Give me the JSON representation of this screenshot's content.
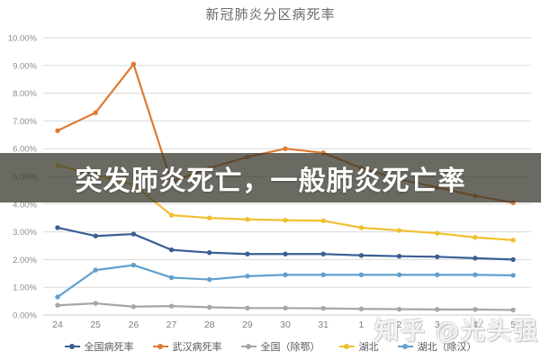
{
  "title": "新冠肺炎分区病死率",
  "overlay_banner": {
    "text": "突发肺炎死亡，一般肺炎死亡率"
  },
  "watermark": {
    "site": "知乎",
    "author": "@光头强"
  },
  "chart_data": {
    "type": "line",
    "title": "新冠肺炎分区病死率",
    "categories": [
      "24",
      "25",
      "26",
      "27",
      "28",
      "29",
      "30",
      "31",
      "1",
      "2",
      "3",
      "4",
      "5"
    ],
    "ylim": [
      0,
      10
    ],
    "ytick_labels": [
      "0.00%",
      "1.00%",
      "2.00%",
      "3.00%",
      "4.00%",
      "5.00%",
      "6.00%",
      "7.00%",
      "8.00%",
      "9.00%",
      "10.00%"
    ],
    "grid": true,
    "legend_position": "bottom",
    "marker": "circle",
    "series": [
      {
        "name": "全国病死率",
        "color": "#3A5F94",
        "values": [
          3.15,
          2.85,
          2.92,
          2.35,
          2.25,
          2.2,
          2.2,
          2.2,
          2.15,
          2.12,
          2.1,
          2.05,
          2.0
        ]
      },
      {
        "name": "武汉病死率",
        "color": "#DD7B33",
        "values": [
          6.65,
          7.3,
          9.05,
          4.8,
          5.3,
          5.7,
          6.0,
          5.85,
          5.3,
          4.9,
          4.6,
          4.3,
          4.05
        ]
      },
      {
        "name": "全国（除鄂）",
        "color": "#A6A6A6",
        "values": [
          0.35,
          0.42,
          0.3,
          0.32,
          0.28,
          0.25,
          0.25,
          0.24,
          0.22,
          0.21,
          0.2,
          0.2,
          0.18
        ]
      },
      {
        "name": "湖北",
        "color": "#EFC12F",
        "values": [
          5.4,
          5.05,
          4.7,
          3.6,
          3.5,
          3.45,
          3.42,
          3.4,
          3.15,
          3.05,
          2.95,
          2.8,
          2.7
        ]
      },
      {
        "name": "湖北（除汉）",
        "color": "#61A0CE",
        "values": [
          0.65,
          1.62,
          1.8,
          1.35,
          1.28,
          1.4,
          1.45,
          1.45,
          1.45,
          1.45,
          1.45,
          1.45,
          1.43
        ]
      }
    ]
  }
}
